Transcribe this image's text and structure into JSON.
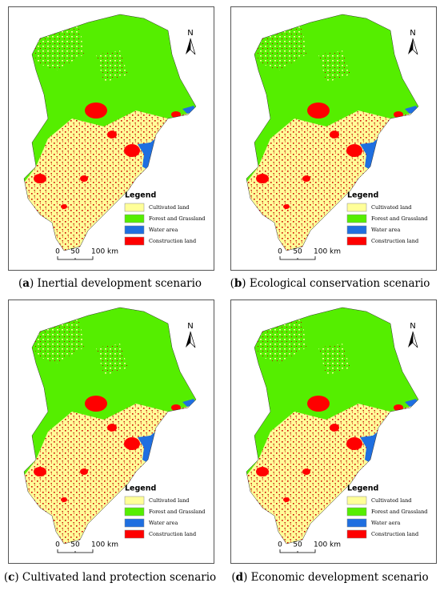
{
  "legend_colors": [
    "#ffff99",
    "#55ee00",
    "#1f6fe0",
    "#ff0000"
  ],
  "panels": [
    {
      "caption_parts": [
        "(",
        "a",
        ") Inertial development scenario"
      ],
      "north": "N",
      "legend": {
        "title": "Legend",
        "items": [
          "Cultivated land",
          "Forest and Grassland",
          "Water area",
          "Construction land"
        ]
      },
      "scale": [
        "0",
        "50",
        "100 km"
      ]
    },
    {
      "caption_parts": [
        "(",
        "b",
        ") Ecological conservation scenario"
      ],
      "north": "N",
      "legend": {
        "title": "Legend",
        "items": [
          "Cultivated land",
          "Forest and Grassland",
          "Water area",
          "Construction land"
        ]
      },
      "scale": [
        "0",
        "50",
        "100 km"
      ]
    },
    {
      "caption_parts": [
        "(",
        "c",
        ") Cultivated land protection scenario"
      ],
      "north": "N",
      "legend": {
        "title": "Legend",
        "items": [
          "Cultivated land",
          "Forest and Grassland",
          "Water area",
          "Construction land"
        ]
      },
      "scale": [
        "0",
        "50",
        "100 km"
      ]
    },
    {
      "caption_parts": [
        "(",
        "d",
        ") Economic development scenario"
      ],
      "north": "N",
      "legend": {
        "title": "Legend",
        "items": [
          "Cultivated land",
          "Forest and Grassland",
          "Water aera",
          "Construction land"
        ]
      },
      "scale": [
        "0",
        "50",
        "100 km"
      ]
    }
  ]
}
